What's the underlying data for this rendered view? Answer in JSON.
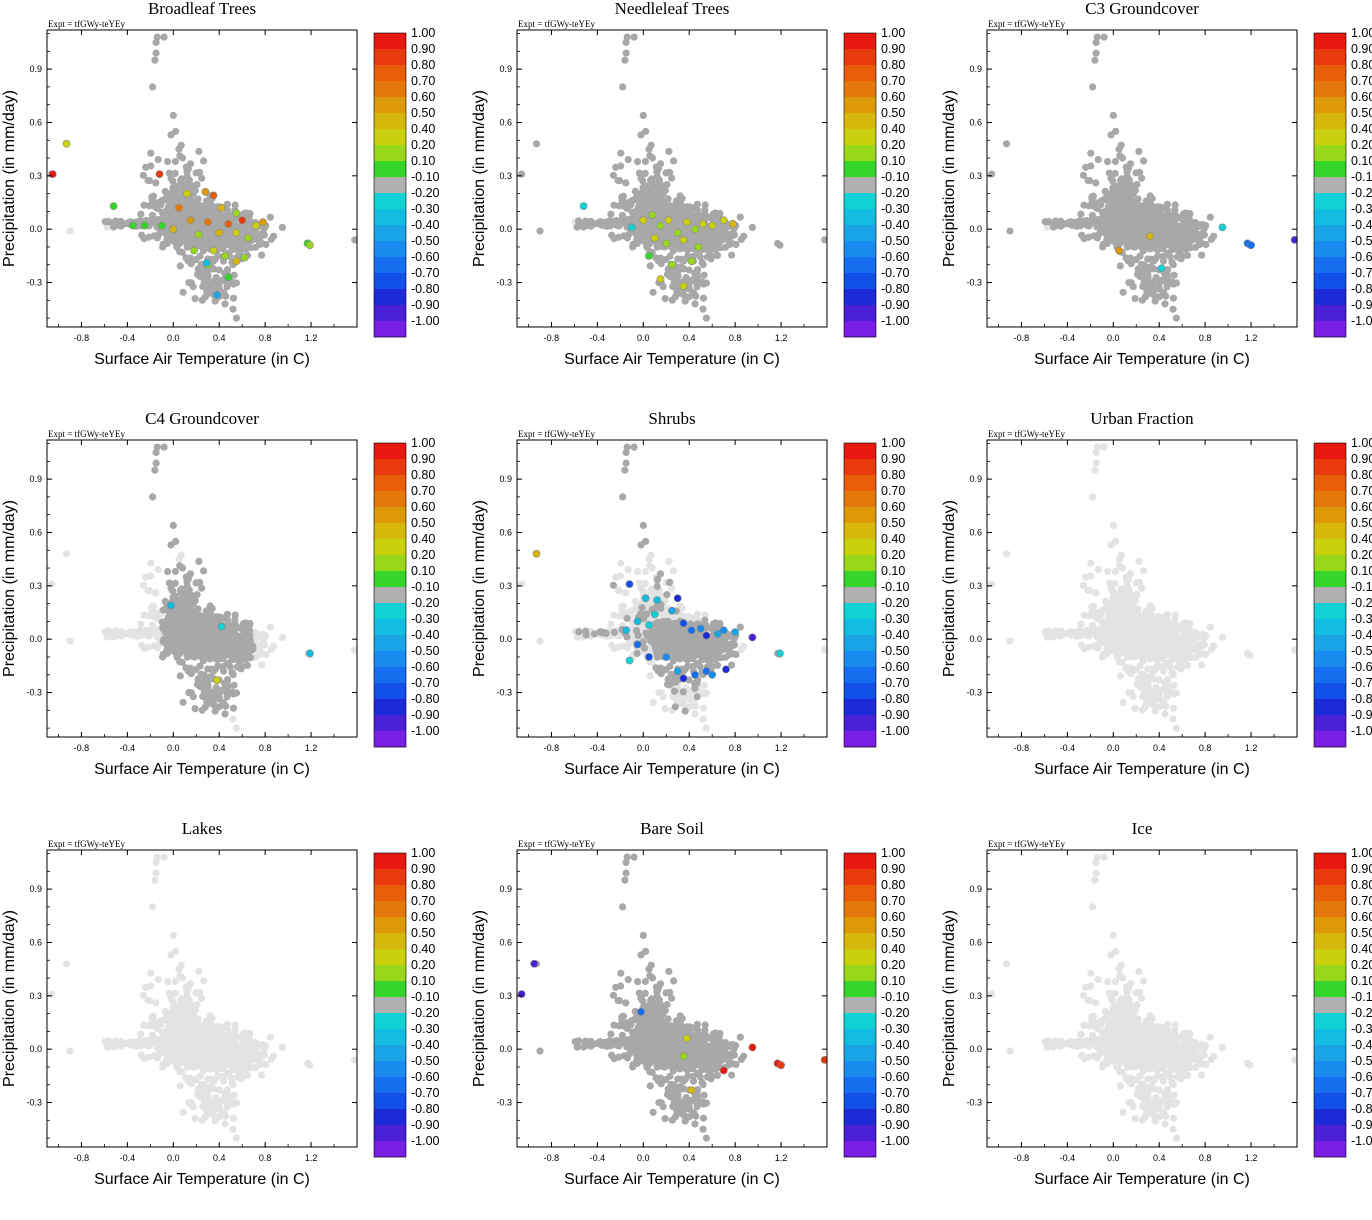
{
  "figure": {
    "expt_label": "Expt = tfGWy-teYEy",
    "xlabel": "Surface Air Temperature (in C)",
    "ylabel": "Precipitation (in mm/day)",
    "colorbar_labels": [
      "1.00",
      "0.90",
      "0.80",
      "0.70",
      "0.60",
      "0.50",
      "0.40",
      "0.20",
      "0.10",
      "-0.10",
      "-0.20",
      "-0.30",
      "-0.40",
      "-0.50",
      "-0.60",
      "-0.70",
      "-0.80",
      "-0.90",
      "-1.00"
    ],
    "colorbar_colors": [
      "#e8170f",
      "#e83a0c",
      "#e85c0a",
      "#e4780a",
      "#dd9908",
      "#d8b70c",
      "#cacf0e",
      "#99d71b",
      "#35d52a",
      "#b0b0b0",
      "#10d2d6",
      "#15bce2",
      "#1aa4e8",
      "#198bef",
      "#166ff0",
      "#1250ea",
      "#1d2ad8",
      "#4a20d6",
      "#7b1ee3"
    ],
    "background_point_color": "#e3e3e3",
    "active_point_color": "#a8a8a8"
  },
  "chart_data": [
    {
      "type": "scatter",
      "title": "Broadleaf Trees",
      "xlabel": "Surface Air Temperature (in C)",
      "ylabel": "Precipitation (in mm/day)",
      "xlim": [
        -1.1,
        1.6
      ],
      "ylim": [
        -0.55,
        1.12
      ],
      "xticks": [
        "-0.8",
        "-0.4",
        "0.0",
        "0.4",
        "0.8",
        "1.2"
      ],
      "yticks": [
        "0.9",
        "0.6",
        "0.3",
        "0.0",
        "-0.3"
      ],
      "active_region": "dense",
      "colored_points": [
        {
          "x": -1.05,
          "y": 0.31,
          "v": 1.0
        },
        {
          "x": -0.93,
          "y": 0.48,
          "v": 0.4
        },
        {
          "x": -0.12,
          "y": 0.31,
          "v": 0.9
        },
        {
          "x": 0.28,
          "y": 0.21,
          "v": 0.6
        },
        {
          "x": 0.35,
          "y": 0.19,
          "v": 0.8
        },
        {
          "x": 0.12,
          "y": 0.2,
          "v": 0.4
        },
        {
          "x": 0.05,
          "y": 0.12,
          "v": 0.7
        },
        {
          "x": 0.42,
          "y": 0.12,
          "v": 0.5
        },
        {
          "x": 0.55,
          "y": 0.09,
          "v": 0.2
        },
        {
          "x": -0.52,
          "y": 0.13,
          "v": 0.1
        },
        {
          "x": -0.35,
          "y": 0.02,
          "v": 0.1
        },
        {
          "x": -0.25,
          "y": 0.02,
          "v": 0.1
        },
        {
          "x": -0.1,
          "y": 0.02,
          "v": 0.1
        },
        {
          "x": 0.0,
          "y": 0.0,
          "v": 0.5
        },
        {
          "x": 0.15,
          "y": 0.05,
          "v": 0.6
        },
        {
          "x": 0.22,
          "y": -0.03,
          "v": 0.2
        },
        {
          "x": 0.3,
          "y": 0.04,
          "v": 0.7
        },
        {
          "x": 0.4,
          "y": -0.02,
          "v": 0.5
        },
        {
          "x": 0.48,
          "y": 0.03,
          "v": 0.8
        },
        {
          "x": 0.6,
          "y": 0.05,
          "v": 0.9
        },
        {
          "x": 0.72,
          "y": 0.02,
          "v": 0.4
        },
        {
          "x": 0.78,
          "y": 0.04,
          "v": 0.6
        },
        {
          "x": 0.65,
          "y": -0.05,
          "v": 0.3
        },
        {
          "x": 0.55,
          "y": -0.02,
          "v": 0.4
        },
        {
          "x": 0.35,
          "y": -0.12,
          "v": 0.4
        },
        {
          "x": 0.45,
          "y": -0.15,
          "v": 0.2
        },
        {
          "x": 0.55,
          "y": -0.18,
          "v": 0.5
        },
        {
          "x": 0.62,
          "y": -0.16,
          "v": 0.3
        },
        {
          "x": 0.48,
          "y": -0.27,
          "v": 0.1
        },
        {
          "x": 0.18,
          "y": -0.12,
          "v": 0.2
        },
        {
          "x": 0.3,
          "y": -0.2,
          "v": 0.3
        },
        {
          "x": 1.17,
          "y": -0.08,
          "v": 0.1
        },
        {
          "x": 1.19,
          "y": -0.09,
          "v": 0.2
        },
        {
          "x": 0.29,
          "y": -0.19,
          "v": -0.3
        },
        {
          "x": 0.38,
          "y": -0.37,
          "v": -0.4
        }
      ]
    },
    {
      "type": "scatter",
      "title": "Needleleaf Trees",
      "xlabel": "Surface Air Temperature (in C)",
      "ylabel": "Precipitation (in mm/day)",
      "xlim": [
        -1.1,
        1.6
      ],
      "ylim": [
        -0.55,
        1.12
      ],
      "xticks": [
        "-0.8",
        "-0.4",
        "0.0",
        "0.4",
        "0.8",
        "1.2"
      ],
      "yticks": [
        "0.9",
        "0.6",
        "0.3",
        "0.0",
        "-0.3"
      ],
      "active_region": "dense",
      "colored_points": [
        {
          "x": -0.52,
          "y": 0.13,
          "v": -0.2
        },
        {
          "x": -0.1,
          "y": 0.01,
          "v": -0.2
        },
        {
          "x": 0.08,
          "y": 0.08,
          "v": 0.2
        },
        {
          "x": 0.15,
          "y": 0.02,
          "v": 0.2
        },
        {
          "x": 0.22,
          "y": 0.05,
          "v": 0.4
        },
        {
          "x": 0.3,
          "y": -0.02,
          "v": 0.2
        },
        {
          "x": 0.38,
          "y": 0.04,
          "v": 0.4
        },
        {
          "x": 0.45,
          "y": 0.0,
          "v": 0.2
        },
        {
          "x": 0.52,
          "y": 0.03,
          "v": 0.4
        },
        {
          "x": 0.6,
          "y": 0.02,
          "v": 0.4
        },
        {
          "x": 0.7,
          "y": 0.05,
          "v": 0.4
        },
        {
          "x": 0.78,
          "y": 0.03,
          "v": 0.5
        },
        {
          "x": 0.1,
          "y": -0.05,
          "v": 0.4
        },
        {
          "x": 0.2,
          "y": -0.08,
          "v": 0.2
        },
        {
          "x": 0.35,
          "y": -0.06,
          "v": 0.4
        },
        {
          "x": 0.48,
          "y": -0.1,
          "v": 0.2
        },
        {
          "x": 0.05,
          "y": -0.15,
          "v": 0.1
        },
        {
          "x": 0.25,
          "y": -0.2,
          "v": 0.2
        },
        {
          "x": 0.35,
          "y": -0.32,
          "v": 0.4
        },
        {
          "x": 0.15,
          "y": -0.28,
          "v": 0.4
        },
        {
          "x": 0.42,
          "y": -0.18,
          "v": 0.2
        },
        {
          "x": 0.0,
          "y": 0.05,
          "v": 0.4
        }
      ]
    },
    {
      "type": "scatter",
      "title": "C3 Groundcover",
      "xlabel": "Surface Air Temperature (in C)",
      "ylabel": "Precipitation (in mm/day)",
      "xlim": [
        -1.1,
        1.6
      ],
      "ylim": [
        -0.55,
        1.12
      ],
      "xticks": [
        "-0.8",
        "-0.4",
        "0.0",
        "0.4",
        "0.8",
        "1.2"
      ],
      "yticks": [
        "0.9",
        "0.6",
        "0.3",
        "0.0",
        "-0.3"
      ],
      "active_region": "dense",
      "colored_points": [
        {
          "x": 0.95,
          "y": 0.01,
          "v": -0.2
        },
        {
          "x": 1.17,
          "y": -0.08,
          "v": -0.6
        },
        {
          "x": 1.2,
          "y": -0.09,
          "v": -0.6
        },
        {
          "x": 1.58,
          "y": -0.06,
          "v": -0.9
        },
        {
          "x": 0.05,
          "y": -0.12,
          "v": 0.6
        },
        {
          "x": 0.32,
          "y": -0.04,
          "v": 0.5
        },
        {
          "x": 0.42,
          "y": -0.22,
          "v": -0.2
        }
      ]
    },
    {
      "type": "scatter",
      "title": "C4 Groundcover",
      "xlabel": "Surface Air Temperature (in C)",
      "ylabel": "Precipitation (in mm/day)",
      "xlim": [
        -1.1,
        1.6
      ],
      "ylim": [
        -0.55,
        1.12
      ],
      "xticks": [
        "-0.8",
        "-0.4",
        "0.0",
        "0.4",
        "0.8",
        "1.2"
      ],
      "yticks": [
        "0.9",
        "0.6",
        "0.3",
        "0.0",
        "-0.3"
      ],
      "active_region": "sparse",
      "colored_points": [
        {
          "x": -0.02,
          "y": 0.19,
          "v": -0.3
        },
        {
          "x": 0.42,
          "y": 0.07,
          "v": -0.2
        },
        {
          "x": 1.19,
          "y": -0.08,
          "v": -0.3
        },
        {
          "x": 0.38,
          "y": -0.23,
          "v": 0.4
        }
      ]
    },
    {
      "type": "scatter",
      "title": "Shrubs",
      "xlabel": "Surface Air Temperature (in C)",
      "ylabel": "Precipitation (in mm/day)",
      "xlim": [
        -1.1,
        1.6
      ],
      "ylim": [
        -0.55,
        1.12
      ],
      "xticks": [
        "-0.8",
        "-0.4",
        "0.0",
        "0.4",
        "0.8",
        "1.2"
      ],
      "yticks": [
        "0.9",
        "0.6",
        "0.3",
        "0.0",
        "-0.3"
      ],
      "active_region": "shrubs",
      "colored_points": [
        {
          "x": -0.93,
          "y": 0.48,
          "v": 0.5
        },
        {
          "x": -0.12,
          "y": 0.31,
          "v": -0.7
        },
        {
          "x": 0.02,
          "y": 0.23,
          "v": -0.3
        },
        {
          "x": 0.12,
          "y": 0.22,
          "v": -0.3
        },
        {
          "x": 0.3,
          "y": 0.23,
          "v": -0.8
        },
        {
          "x": 0.25,
          "y": 0.16,
          "v": -0.4
        },
        {
          "x": 0.1,
          "y": 0.14,
          "v": -0.2
        },
        {
          "x": -0.05,
          "y": 0.1,
          "v": -0.3
        },
        {
          "x": 0.05,
          "y": 0.08,
          "v": -0.2
        },
        {
          "x": 0.35,
          "y": 0.09,
          "v": -0.7
        },
        {
          "x": 0.42,
          "y": 0.05,
          "v": -0.6
        },
        {
          "x": 0.5,
          "y": 0.06,
          "v": -0.5
        },
        {
          "x": 0.55,
          "y": 0.02,
          "v": -0.8
        },
        {
          "x": 0.65,
          "y": 0.03,
          "v": -0.4
        },
        {
          "x": 0.7,
          "y": 0.05,
          "v": -0.5
        },
        {
          "x": 0.8,
          "y": 0.04,
          "v": -0.4
        },
        {
          "x": 0.95,
          "y": 0.01,
          "v": -0.9
        },
        {
          "x": -0.15,
          "y": 0.05,
          "v": -0.3
        },
        {
          "x": -0.05,
          "y": -0.03,
          "v": -0.6
        },
        {
          "x": 0.05,
          "y": -0.1,
          "v": -0.7
        },
        {
          "x": -0.12,
          "y": -0.12,
          "v": -0.2
        },
        {
          "x": 0.2,
          "y": -0.1,
          "v": -0.5
        },
        {
          "x": 0.3,
          "y": -0.18,
          "v": -0.4
        },
        {
          "x": 0.35,
          "y": -0.22,
          "v": -0.8
        },
        {
          "x": 0.45,
          "y": -0.2,
          "v": -0.6
        },
        {
          "x": 0.55,
          "y": -0.18,
          "v": -0.6
        },
        {
          "x": 0.6,
          "y": -0.2,
          "v": -0.5
        },
        {
          "x": 0.72,
          "y": -0.17,
          "v": -0.8
        },
        {
          "x": 1.19,
          "y": -0.08,
          "v": -0.2
        }
      ]
    },
    {
      "type": "scatter",
      "title": "Urban Fraction",
      "xlabel": "Surface Air Temperature (in C)",
      "ylabel": "Precipitation (in mm/day)",
      "xlim": [
        -1.1,
        1.6
      ],
      "ylim": [
        -0.55,
        1.12
      ],
      "xticks": [
        "-0.8",
        "-0.4",
        "0.0",
        "0.4",
        "0.8",
        "1.2"
      ],
      "yticks": [
        "0.9",
        "0.6",
        "0.3",
        "0.0",
        "-0.3"
      ],
      "active_region": "none",
      "colored_points": []
    },
    {
      "type": "scatter",
      "title": "Lakes",
      "xlabel": "Surface Air Temperature (in C)",
      "ylabel": "Precipitation (in mm/day)",
      "xlim": [
        -1.1,
        1.6
      ],
      "ylim": [
        -0.55,
        1.12
      ],
      "xticks": [
        "-0.8",
        "-0.4",
        "0.0",
        "0.4",
        "0.8",
        "1.2"
      ],
      "yticks": [
        "0.9",
        "0.6",
        "0.3",
        "0.0",
        "-0.3"
      ],
      "active_region": "none",
      "colored_points": []
    },
    {
      "type": "scatter",
      "title": "Bare Soil",
      "xlabel": "Surface Air Temperature (in C)",
      "ylabel": "Precipitation (in mm/day)",
      "xlim": [
        -1.1,
        1.6
      ],
      "ylim": [
        -0.55,
        1.12
      ],
      "xticks": [
        "-0.8",
        "-0.4",
        "0.0",
        "0.4",
        "0.8",
        "1.2"
      ],
      "yticks": [
        "0.9",
        "0.6",
        "0.3",
        "0.0",
        "-0.3"
      ],
      "active_region": "dense",
      "colored_points": [
        {
          "x": -1.06,
          "y": 0.31,
          "v": -0.9
        },
        {
          "x": -0.95,
          "y": 0.48,
          "v": -0.9
        },
        {
          "x": -0.02,
          "y": 0.21,
          "v": -0.6
        },
        {
          "x": 0.38,
          "y": 0.06,
          "v": 0.4
        },
        {
          "x": 0.35,
          "y": -0.04,
          "v": 0.2
        },
        {
          "x": 0.7,
          "y": -0.12,
          "v": 1.0
        },
        {
          "x": 0.95,
          "y": 0.01,
          "v": 1.0
        },
        {
          "x": 1.17,
          "y": -0.08,
          "v": 1.0
        },
        {
          "x": 1.2,
          "y": -0.09,
          "v": 0.9
        },
        {
          "x": 1.58,
          "y": -0.06,
          "v": 0.9
        },
        {
          "x": 0.42,
          "y": -0.23,
          "v": 0.5
        }
      ]
    },
    {
      "type": "scatter",
      "title": "Ice",
      "xlabel": "Surface Air Temperature (in C)",
      "ylabel": "Precipitation (in mm/day)",
      "xlim": [
        -1.1,
        1.6
      ],
      "ylim": [
        -0.55,
        1.12
      ],
      "xticks": [
        "-0.8",
        "-0.4",
        "0.0",
        "0.4",
        "0.8",
        "1.2"
      ],
      "yticks": [
        "0.9",
        "0.6",
        "0.3",
        "0.0",
        "-0.3"
      ],
      "active_region": "none",
      "colored_points": []
    }
  ]
}
